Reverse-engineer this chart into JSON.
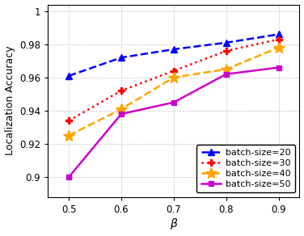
{
  "x": [
    0.5,
    0.6,
    0.7,
    0.8,
    0.9
  ],
  "series": [
    {
      "label": "batch-size=20",
      "y": [
        0.961,
        0.972,
        0.977,
        0.981,
        0.986
      ],
      "color": "#0000FF",
      "linestyle": "--",
      "marker": "^",
      "markersize": 6
    },
    {
      "label": "batch-size=30",
      "y": [
        0.934,
        0.952,
        0.964,
        0.976,
        0.983
      ],
      "color": "#FF0000",
      "linestyle": ":",
      "marker": "P",
      "markersize": 6
    },
    {
      "label": "batch-size=40",
      "y": [
        0.925,
        0.941,
        0.96,
        0.965,
        0.978
      ],
      "color": "#FFA500",
      "linestyle": "--",
      "marker": "*",
      "markersize": 10
    },
    {
      "label": "batch-size=50",
      "y": [
        0.9,
        0.938,
        0.945,
        0.962,
        0.966
      ],
      "color": "#CC00CC",
      "linestyle": "-",
      "marker": "s",
      "markersize": 5
    }
  ],
  "xlabel": "$\\beta$",
  "ylabel": "Localization Accuracy",
  "xlim": [
    0.46,
    0.94
  ],
  "ylim": [
    0.888,
    1.004
  ],
  "xticks": [
    0.5,
    0.6,
    0.7,
    0.8,
    0.9
  ],
  "yticks": [
    0.9,
    0.92,
    0.94,
    0.96,
    0.98,
    1.0
  ],
  "ytick_labels": [
    "0.9",
    "0.92",
    "0.94",
    "0.96",
    "0.98",
    "1"
  ],
  "grid": true,
  "legend_loc": "lower right",
  "label_fontsize": 9,
  "tick_fontsize": 8.5,
  "legend_fontsize": 8
}
